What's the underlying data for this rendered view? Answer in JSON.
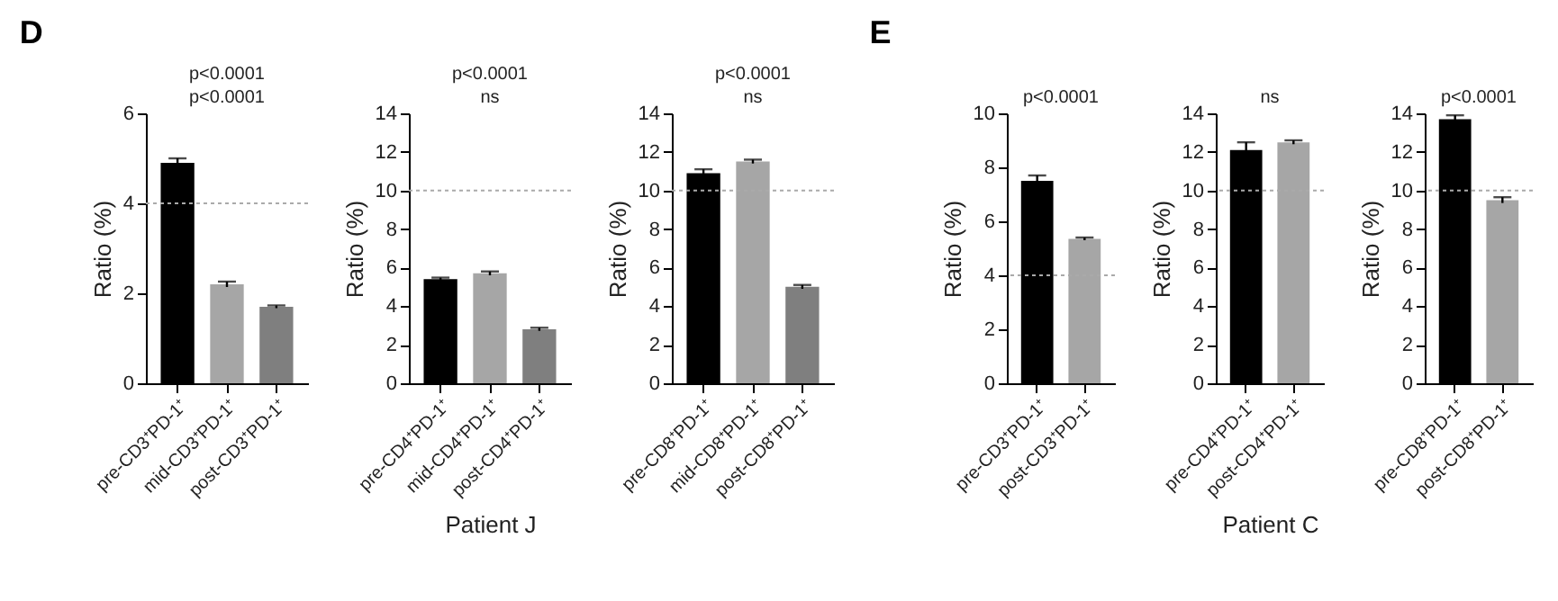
{
  "chart_data": [
    {
      "type": "bar",
      "title": "D",
      "ylabel": "Ratio (%)",
      "categories": [
        "pre-CD3⁺PD-1⁺",
        "mid-CD3⁺PD-1⁺",
        "post-CD3⁺PD-1⁺"
      ],
      "values": [
        4.9,
        2.2,
        1.7
      ],
      "errors": [
        0.1,
        0.06,
        0.03
      ],
      "colors": [
        "#000000",
        "#a6a6a6",
        "#7f7f7f"
      ],
      "ylim": [
        0,
        6
      ],
      "yticks": [
        0,
        2,
        4,
        6
      ],
      "ref_lines": [
        {
          "axis": "y",
          "value": 4,
          "color": "#aaaaaa",
          "line_style": "dotted"
        }
      ],
      "annotations": [
        "p<0.0001",
        "p<0.0001"
      ]
    },
    {
      "type": "bar",
      "ylabel": "Ratio (%)",
      "xlabel": "Patient J",
      "categories": [
        "pre-CD4⁺PD-1⁺",
        "mid-CD4⁺PD-1⁺",
        "post-CD4⁺PD-1⁺"
      ],
      "values": [
        5.4,
        5.7,
        2.8
      ],
      "errors": [
        0.08,
        0.1,
        0.08
      ],
      "colors": [
        "#000000",
        "#a6a6a6",
        "#7f7f7f"
      ],
      "ylim": [
        0,
        14
      ],
      "yticks": [
        0,
        2,
        4,
        6,
        8,
        10,
        12,
        14
      ],
      "ref_lines": [
        {
          "axis": "y",
          "value": 10,
          "color": "#aaaaaa",
          "line_style": "dotted"
        }
      ],
      "annotations": [
        "p<0.0001",
        "ns"
      ]
    },
    {
      "type": "bar",
      "ylabel": "Ratio (%)",
      "categories": [
        "pre-CD8⁺PD-1⁺",
        "mid-CD8⁺PD-1⁺",
        "post-CD8⁺PD-1⁺"
      ],
      "values": [
        10.9,
        11.5,
        5.0
      ],
      "errors": [
        0.2,
        0.1,
        0.1
      ],
      "colors": [
        "#000000",
        "#a6a6a6",
        "#7f7f7f"
      ],
      "ylim": [
        0,
        14
      ],
      "yticks": [
        0,
        2,
        4,
        6,
        8,
        10,
        12,
        14
      ],
      "ref_lines": [
        {
          "axis": "y",
          "value": 10,
          "color": "#aaaaaa",
          "line_style": "dotted"
        }
      ],
      "annotations": [
        "p<0.0001",
        "ns"
      ]
    },
    {
      "type": "bar",
      "title": "E",
      "ylabel": "Ratio (%)",
      "categories": [
        "pre-CD3⁺PD-1⁺",
        "post-CD3⁺PD-1⁺"
      ],
      "values": [
        7.5,
        5.35
      ],
      "errors": [
        0.2,
        0.05
      ],
      "colors": [
        "#000000",
        "#a6a6a6"
      ],
      "ylim": [
        0,
        10
      ],
      "yticks": [
        0,
        2,
        4,
        6,
        8,
        10
      ],
      "ref_lines": [
        {
          "axis": "y",
          "value": 4,
          "color": "#aaaaaa",
          "line_style": "dotted"
        }
      ],
      "annotations": [
        "p<0.0001"
      ]
    },
    {
      "type": "bar",
      "ylabel": "Ratio (%)",
      "xlabel": "Patient C",
      "categories": [
        "pre-CD4⁺PD-1⁺",
        "post-CD4⁺PD-1⁺"
      ],
      "values": [
        12.1,
        12.5
      ],
      "errors": [
        0.4,
        0.1
      ],
      "colors": [
        "#000000",
        "#a6a6a6"
      ],
      "ylim": [
        0,
        14
      ],
      "yticks": [
        0,
        2,
        4,
        6,
        8,
        10,
        12,
        14
      ],
      "ref_lines": [
        {
          "axis": "y",
          "value": 10,
          "color": "#aaaaaa",
          "line_style": "dotted"
        }
      ],
      "annotations": [
        "ns"
      ]
    },
    {
      "type": "bar",
      "ylabel": "Ratio (%)",
      "categories": [
        "pre-CD8⁺PD-1⁺",
        "post-CD8⁺PD-1⁺"
      ],
      "values": [
        13.7,
        9.5
      ],
      "errors": [
        0.2,
        0.15
      ],
      "colors": [
        "#000000",
        "#a6a6a6"
      ],
      "ylim": [
        0,
        14
      ],
      "yticks": [
        0,
        2,
        4,
        6,
        8,
        10,
        12,
        14
      ],
      "ref_lines": [
        {
          "axis": "y",
          "value": 10,
          "color": "#aaaaaa",
          "line_style": "dotted"
        }
      ],
      "annotations": [
        "p<0.0001"
      ]
    }
  ]
}
